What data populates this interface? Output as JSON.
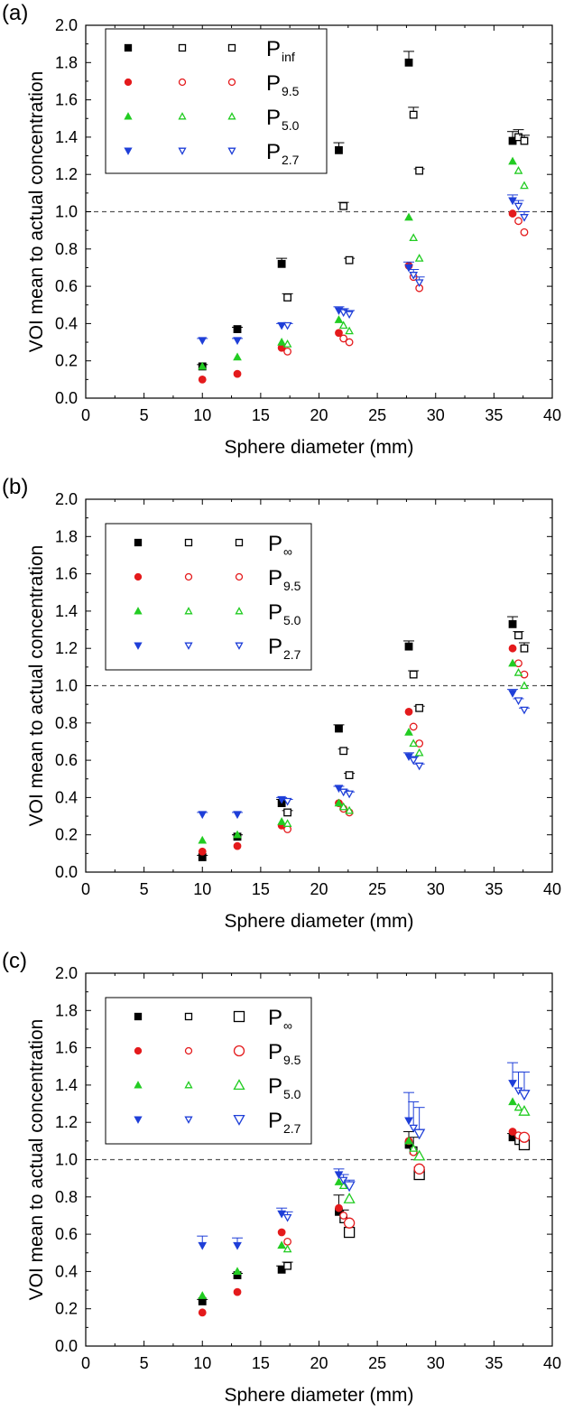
{
  "chart_data": [
    {
      "panel_label": "(a)",
      "type": "scatter",
      "xlabel": "Sphere diameter (mm)",
      "ylabel": "VOI mean to actual concentration",
      "xlim": [
        0,
        40
      ],
      "ylim": [
        0.0,
        2.0
      ],
      "xticks": [
        "0",
        "5",
        "10",
        "15",
        "20",
        "25",
        "30",
        "35",
        "40"
      ],
      "yticks": [
        "0.0",
        "0.2",
        "0.4",
        "0.6",
        "0.8",
        "1.0",
        "1.2",
        "1.4",
        "1.6",
        "1.8",
        "2.0"
      ],
      "reference_line": 1.0,
      "legend_position": "top-left",
      "legend": [
        {
          "base": "P",
          "sub": "inf"
        },
        {
          "base": "P",
          "sub": "9.5"
        },
        {
          "base": "P",
          "sub": "5.0"
        },
        {
          "base": "P",
          "sub": "2.7"
        }
      ],
      "series": [
        {
          "group": "inf",
          "variant": 0,
          "x": [
            10,
            13,
            16.8,
            21.7,
            27.7,
            36.6
          ],
          "y": [
            0.17,
            0.37,
            0.72,
            1.33,
            1.8,
            1.38
          ],
          "err": [
            0.01,
            0.01,
            0.03,
            0.04,
            0.06,
            0.05
          ]
        },
        {
          "group": "inf",
          "variant": 1,
          "x": [
            17.3,
            22.1,
            28.1,
            37.1
          ],
          "y": [
            0.54,
            1.03,
            1.52,
            1.4
          ],
          "err": [
            0.02,
            0.02,
            0.04,
            0.04
          ]
        },
        {
          "group": "inf",
          "variant": 2,
          "x": [
            22.6,
            28.6,
            37.6
          ],
          "y": [
            0.74,
            1.22,
            1.38
          ],
          "err": [
            0.01,
            0.01,
            0.03
          ]
        },
        {
          "group": "9.5",
          "variant": 0,
          "x": [
            10,
            13,
            16.8,
            21.7,
            27.7,
            36.6
          ],
          "y": [
            0.1,
            0.13,
            0.27,
            0.35,
            0.71,
            0.99
          ],
          "err": [
            0,
            0,
            0,
            0,
            0,
            0
          ]
        },
        {
          "group": "9.5",
          "variant": 1,
          "x": [
            17.3,
            22.1,
            28.1,
            37.1
          ],
          "y": [
            0.25,
            0.32,
            0.65,
            0.95
          ],
          "err": [
            0,
            0,
            0,
            0
          ]
        },
        {
          "group": "9.5",
          "variant": 2,
          "x": [
            22.6,
            28.6,
            37.6
          ],
          "y": [
            0.3,
            0.59,
            0.89
          ],
          "err": [
            0,
            0,
            0
          ]
        },
        {
          "group": "5.0",
          "variant": 0,
          "x": [
            10,
            13,
            16.8,
            21.7,
            27.7,
            36.6
          ],
          "y": [
            0.17,
            0.22,
            0.3,
            0.42,
            0.97,
            1.27
          ],
          "err": [
            0,
            0,
            0,
            0,
            0,
            0
          ]
        },
        {
          "group": "5.0",
          "variant": 1,
          "x": [
            17.3,
            22.1,
            28.1,
            37.1
          ],
          "y": [
            0.29,
            0.39,
            0.86,
            1.22
          ],
          "err": [
            0,
            0,
            0,
            0
          ]
        },
        {
          "group": "5.0",
          "variant": 2,
          "x": [
            22.6,
            28.6,
            37.6
          ],
          "y": [
            0.36,
            0.75,
            1.14
          ],
          "err": [
            0,
            0,
            0
          ]
        },
        {
          "group": "2.7",
          "variant": 0,
          "x": [
            10,
            13,
            16.8,
            21.7,
            27.7,
            36.6
          ],
          "y": [
            0.31,
            0.31,
            0.39,
            0.47,
            0.7,
            1.06
          ],
          "err": [
            0.01,
            0.01,
            0.01,
            0.02,
            0.03,
            0.03
          ]
        },
        {
          "group": "2.7",
          "variant": 1,
          "x": [
            17.3,
            22.1,
            28.1,
            37.1
          ],
          "y": [
            0.39,
            0.46,
            0.66,
            1.03
          ],
          "err": [
            0.01,
            0.02,
            0.03,
            0.03
          ]
        },
        {
          "group": "2.7",
          "variant": 2,
          "x": [
            22.6,
            28.6,
            37.6
          ],
          "y": [
            0.45,
            0.62,
            0.97
          ],
          "err": [
            0.02,
            0.03,
            0.03
          ]
        }
      ]
    },
    {
      "panel_label": "(b)",
      "type": "scatter",
      "xlabel": "Sphere diameter (mm)",
      "ylabel": "VOI mean to actual concentration",
      "xlim": [
        0,
        40
      ],
      "ylim": [
        0.0,
        2.0
      ],
      "xticks": [
        "0",
        "5",
        "10",
        "15",
        "20",
        "25",
        "30",
        "35",
        "40"
      ],
      "yticks": [
        "0.0",
        "0.2",
        "0.4",
        "0.6",
        "0.8",
        "1.0",
        "1.2",
        "1.4",
        "1.6",
        "1.8",
        "2.0"
      ],
      "reference_line": 1.0,
      "legend_position": "top-left",
      "legend": [
        {
          "base": "P",
          "sub": "∞"
        },
        {
          "base": "P",
          "sub": "9.5"
        },
        {
          "base": "P",
          "sub": "5.0"
        },
        {
          "base": "P",
          "sub": "2.7"
        }
      ],
      "series": [
        {
          "group": "inf",
          "variant": 0,
          "x": [
            10,
            13,
            16.8,
            21.7,
            27.7,
            36.6
          ],
          "y": [
            0.08,
            0.19,
            0.37,
            0.77,
            1.21,
            1.33
          ],
          "err": [
            0.01,
            0.01,
            0.02,
            0.02,
            0.03,
            0.04
          ]
        },
        {
          "group": "inf",
          "variant": 1,
          "x": [
            17.3,
            22.1,
            28.1,
            37.1
          ],
          "y": [
            0.32,
            0.65,
            1.06,
            1.27
          ],
          "err": [
            0.01,
            0.01,
            0.02,
            0.02
          ]
        },
        {
          "group": "inf",
          "variant": 2,
          "x": [
            22.6,
            28.6,
            37.6
          ],
          "y": [
            0.52,
            0.88,
            1.2
          ],
          "err": [
            0.01,
            0.01,
            0.03
          ]
        },
        {
          "group": "9.5",
          "variant": 0,
          "x": [
            10,
            13,
            16.8,
            21.7,
            27.7,
            36.6
          ],
          "y": [
            0.11,
            0.14,
            0.25,
            0.37,
            0.86,
            1.2
          ],
          "err": [
            0,
            0,
            0,
            0,
            0,
            0
          ]
        },
        {
          "group": "9.5",
          "variant": 1,
          "x": [
            17.3,
            22.1,
            28.1,
            37.1
          ],
          "y": [
            0.23,
            0.34,
            0.78,
            1.12
          ],
          "err": [
            0,
            0,
            0,
            0
          ]
        },
        {
          "group": "9.5",
          "variant": 2,
          "x": [
            22.6,
            28.6,
            37.6
          ],
          "y": [
            0.32,
            0.69,
            1.06
          ],
          "err": [
            0,
            0,
            0
          ]
        },
        {
          "group": "5.0",
          "variant": 0,
          "x": [
            10,
            13,
            16.8,
            21.7,
            27.7,
            36.6
          ],
          "y": [
            0.17,
            0.2,
            0.27,
            0.37,
            0.75,
            1.12
          ],
          "err": [
            0,
            0,
            0,
            0,
            0,
            0
          ]
        },
        {
          "group": "5.0",
          "variant": 1,
          "x": [
            17.3,
            22.1,
            28.1,
            37.1
          ],
          "y": [
            0.26,
            0.35,
            0.69,
            1.07
          ],
          "err": [
            0,
            0,
            0,
            0
          ]
        },
        {
          "group": "5.0",
          "variant": 2,
          "x": [
            22.6,
            28.6,
            37.6
          ],
          "y": [
            0.33,
            0.64,
            1.0
          ],
          "err": [
            0,
            0,
            0
          ]
        },
        {
          "group": "2.7",
          "variant": 0,
          "x": [
            10,
            13,
            16.8,
            21.7,
            27.7,
            36.6
          ],
          "y": [
            0.31,
            0.31,
            0.39,
            0.45,
            0.62,
            0.96
          ],
          "err": [
            0.01,
            0.01,
            0.01,
            0.01,
            0.02,
            0.02
          ]
        },
        {
          "group": "2.7",
          "variant": 1,
          "x": [
            17.3,
            22.1,
            28.1,
            37.1
          ],
          "y": [
            0.38,
            0.43,
            0.6,
            0.92
          ],
          "err": [
            0.01,
            0.01,
            0.02,
            0.01
          ]
        },
        {
          "group": "2.7",
          "variant": 2,
          "x": [
            22.6,
            28.6,
            37.6
          ],
          "y": [
            0.42,
            0.57,
            0.87
          ],
          "err": [
            0.01,
            0.01,
            0.01
          ]
        }
      ]
    },
    {
      "panel_label": "(c)",
      "type": "scatter",
      "xlabel": "Sphere diameter (mm)",
      "ylabel": "VOI mean to actual concentration",
      "xlim": [
        0,
        40
      ],
      "ylim": [
        0.0,
        2.0
      ],
      "xticks": [
        "0",
        "5",
        "10",
        "15",
        "20",
        "25",
        "30",
        "35",
        "40"
      ],
      "yticks": [
        "0.0",
        "0.2",
        "0.4",
        "0.6",
        "0.8",
        "1.0",
        "1.2",
        "1.4",
        "1.6",
        "1.8",
        "2.0"
      ],
      "reference_line": 1.0,
      "legend_position": "top-left",
      "legend": [
        {
          "base": "P",
          "sub": "∞"
        },
        {
          "base": "P",
          "sub": "9.5"
        },
        {
          "base": "P",
          "sub": "5.0"
        },
        {
          "base": "P",
          "sub": "2.7"
        }
      ],
      "series": [
        {
          "group": "inf",
          "variant": 0,
          "x": [
            10,
            13,
            16.8,
            21.7,
            27.7,
            36.6
          ],
          "y": [
            0.24,
            0.38,
            0.41,
            0.72,
            1.08,
            1.12
          ],
          "err": [
            0.01,
            0.01,
            0.02,
            0.09,
            0.07,
            0.02
          ]
        },
        {
          "group": "inf",
          "variant": 1,
          "x": [
            17.3,
            22.1,
            28.1,
            37.1
          ],
          "y": [
            0.43,
            0.68,
            1.05,
            1.1
          ],
          "err": [
            0.02,
            0.05,
            0.07,
            0.02
          ]
        },
        {
          "group": "inf",
          "variant": 2,
          "x": [
            22.6,
            28.6,
            37.6
          ],
          "y": [
            0.61,
            0.92,
            1.08
          ],
          "err": [
            0.02,
            0.04,
            0.02
          ]
        },
        {
          "group": "9.5",
          "variant": 0,
          "x": [
            10,
            13,
            16.8,
            21.7,
            27.7,
            36.6
          ],
          "y": [
            0.18,
            0.29,
            0.61,
            0.74,
            1.1,
            1.15
          ],
          "err": [
            0,
            0,
            0,
            0,
            0,
            0
          ]
        },
        {
          "group": "9.5",
          "variant": 1,
          "x": [
            17.3,
            22.1,
            28.1,
            37.1
          ],
          "y": [
            0.56,
            0.7,
            1.04,
            1.13
          ],
          "err": [
            0,
            0,
            0,
            0
          ]
        },
        {
          "group": "9.5",
          "variant": 2,
          "x": [
            22.6,
            28.6,
            37.6
          ],
          "y": [
            0.66,
            0.95,
            1.12
          ],
          "err": [
            0,
            0,
            0
          ]
        },
        {
          "group": "5.0",
          "variant": 0,
          "x": [
            10,
            13,
            16.8,
            21.7,
            27.7,
            36.6
          ],
          "y": [
            0.27,
            0.4,
            0.54,
            0.88,
            1.1,
            1.31
          ],
          "err": [
            0,
            0,
            0,
            0,
            0,
            0
          ]
        },
        {
          "group": "5.0",
          "variant": 1,
          "x": [
            17.3,
            22.1,
            28.1,
            37.1
          ],
          "y": [
            0.52,
            0.86,
            1.06,
            1.28
          ],
          "err": [
            0,
            0,
            0,
            0
          ]
        },
        {
          "group": "5.0",
          "variant": 2,
          "x": [
            22.6,
            28.6,
            37.6
          ],
          "y": [
            0.79,
            1.02,
            1.26
          ],
          "err": [
            0,
            0,
            0
          ]
        },
        {
          "group": "2.7",
          "variant": 0,
          "x": [
            10,
            13,
            16.8,
            21.7,
            27.7,
            36.6
          ],
          "y": [
            0.54,
            0.54,
            0.71,
            0.92,
            1.21,
            1.41
          ],
          "err": [
            0.05,
            0.04,
            0.03,
            0.03,
            0.15,
            0.11
          ]
        },
        {
          "group": "2.7",
          "variant": 1,
          "x": [
            17.3,
            22.1,
            28.1,
            37.1
          ],
          "y": [
            0.69,
            0.89,
            1.17,
            1.37
          ],
          "err": [
            0.03,
            0.03,
            0.14,
            0.1
          ]
        },
        {
          "group": "2.7",
          "variant": 2,
          "x": [
            22.6,
            28.6,
            37.6
          ],
          "y": [
            0.86,
            1.14,
            1.35
          ],
          "err": [
            0.03,
            0.14,
            0.12
          ]
        }
      ]
    }
  ],
  "colors": {
    "inf": "#000000",
    "9.5": "#e41a1c",
    "5.0": "#22cc22",
    "2.7": "#1f3fd8",
    "reference_line": "#555555"
  },
  "marker_shapes": {
    "inf": "square",
    "9.5": "circle",
    "5.0": "triangle-up",
    "2.7": "triangle-down"
  }
}
